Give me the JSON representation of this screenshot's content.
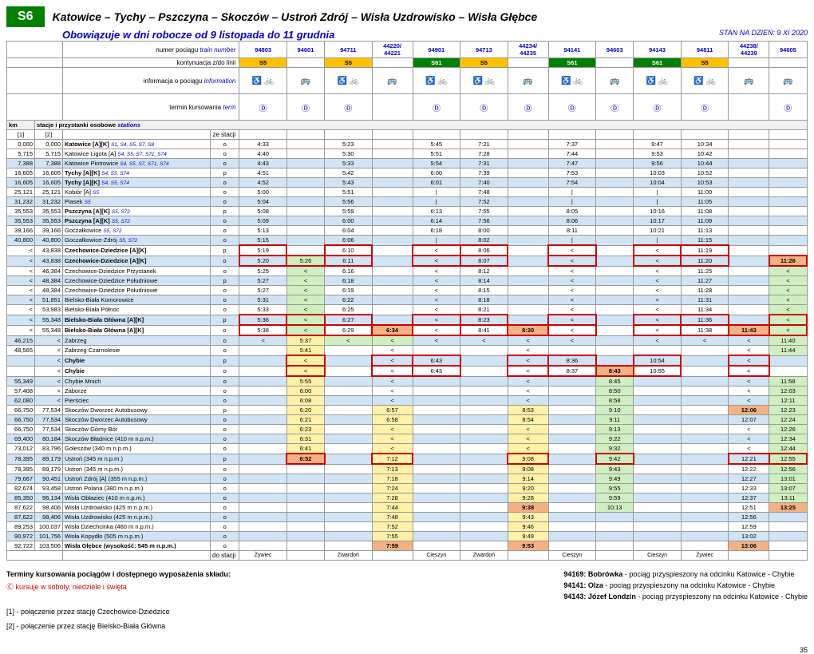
{
  "header": {
    "badge": "S6",
    "title": "Katowice – Tychy – Pszczyna – Skoczów – Ustroń Zdrój – Wisła Uzdrowisko – Wisła Głębce"
  },
  "subtitle": "Obowiązuje w dni robocze od 9 listopada do 11 grudnia",
  "stan": "STAN NA DZIEŃ: 9 XI 2020",
  "labels": {
    "train_no": "numer pociągu",
    "train_no_en": "train number",
    "cont": "kontynuacja z/do linii",
    "info": "informacja o pociągu",
    "info_en": "information",
    "term": "termin kursowania",
    "term_en": "term",
    "stations": "stacje i przystanki osobowe",
    "stations_en": "stations",
    "km": "km",
    "ze": "ze stacji",
    "do": "do stacji",
    "col1": "[1]",
    "col2": "[2]"
  },
  "trains": [
    "94803",
    "94601",
    "94711",
    "44220/\n44221",
    "94901",
    "94713",
    "44234/\n44235",
    "94141",
    "94603",
    "94143",
    "94811",
    "44238/\n44239",
    "94605"
  ],
  "cont_line": [
    "S5",
    "",
    "S5",
    "",
    "S61",
    "S5",
    "",
    "S61",
    "",
    "S61",
    "S5",
    "",
    ""
  ],
  "cont_color": [
    "y",
    "",
    "y",
    "",
    "g",
    "y",
    "",
    "g",
    "",
    "g",
    "y",
    "",
    ""
  ],
  "icons": [
    "♿ 🚲",
    "🚌",
    "♿ 🚲",
    "🚌",
    "♿ 🚲",
    "♿ 🚲",
    "🚌",
    "♿ 🚲",
    "🚌",
    "♿ 🚲",
    "♿ 🚲",
    "🚌",
    "🚌"
  ],
  "terms": [
    "Ⓓ",
    "Ⓓ",
    "Ⓓ",
    "",
    "Ⓓ",
    "Ⓓ",
    "Ⓓ",
    "Ⓓ",
    "Ⓓ",
    "Ⓓ",
    "Ⓓ",
    "",
    "Ⓓ"
  ],
  "endStations": [
    "Żywiec",
    "",
    "Zwardoń",
    "",
    "Cieszyn",
    "Zwardoń",
    "",
    "Cieszyn",
    "",
    "Cieszyn",
    "Żywiec",
    "",
    ""
  ],
  "stations": [
    {
      "k1": "0,000",
      "k2": "0,000",
      "n": "Katowice [A][K]",
      "ex": "S1, S4, S5, S7, S8",
      "o": "o",
      "t": [
        "4:33",
        "",
        "5:23",
        "",
        "5:45",
        "7:21",
        "",
        "7:37",
        "",
        "9:47",
        "10:34",
        "",
        ""
      ],
      "b": 1
    },
    {
      "k1": "5,715",
      "k2": "5,715",
      "n": "Katowice Ligota [A]",
      "ex": "S4, S5, S7, S71, S74",
      "o": "o",
      "t": [
        "4:40",
        "",
        "5:30",
        "",
        "5:51",
        "7:28",
        "",
        "7:44",
        "",
        "9:53",
        "10:42",
        "",
        ""
      ]
    },
    {
      "k1": "7,388",
      "k2": "7,388",
      "n": "Katowice Piotrowice",
      "ex": "S4, S5, S7, S71, S74",
      "o": "o",
      "t": [
        "4:43",
        "",
        "5:33",
        "",
        "5:54",
        "7:31",
        "",
        "7:47",
        "",
        "9:56",
        "10:44",
        "",
        ""
      ],
      "bl": 1
    },
    {
      "k1": "16,605",
      "k2": "16,605",
      "n": "Tychy [A][K]",
      "ex": "S4, S5, S74",
      "o": "p",
      "t": [
        "4:51",
        "",
        "5:42",
        "",
        "6:00",
        "7:39",
        "",
        "7:53",
        "",
        "10:03",
        "10:52",
        "",
        ""
      ],
      "b": 1
    },
    {
      "k1": "16,605",
      "k2": "16,605",
      "n": "Tychy [A][K]",
      "ex": "S4, S5, S74",
      "o": "o",
      "t": [
        "4:52",
        "",
        "5:43",
        "",
        "6:01",
        "7:40",
        "",
        "7:54",
        "",
        "10:04",
        "10:53",
        "",
        ""
      ],
      "b": 1,
      "bl": 1
    },
    {
      "k1": "25,121",
      "k2": "25,121",
      "n": "Kobiór [A]",
      "ex": "S5",
      "o": "o",
      "t": [
        "5:00",
        "",
        "5:51",
        "",
        "|",
        "7:48",
        "",
        "|",
        "",
        "|",
        "11:00",
        "",
        ""
      ]
    },
    {
      "k1": "31,232",
      "k2": "31,232",
      "n": "Piasek",
      "ex": "S5",
      "o": "o",
      "t": [
        "5:04",
        "",
        "5:56",
        "",
        "|",
        "7:52",
        "",
        "|",
        "",
        "|",
        "11:05",
        "",
        ""
      ],
      "bl": 1
    },
    {
      "k1": "35,553",
      "k2": "35,553",
      "n": "Pszczyna [A][K]",
      "ex": "S5, S72",
      "o": "p",
      "t": [
        "5:08",
        "",
        "5:59",
        "",
        "6:13",
        "7:55",
        "",
        "8:05",
        "",
        "10:16",
        "11:08",
        "",
        ""
      ],
      "b": 1
    },
    {
      "k1": "35,553",
      "k2": "35,553",
      "n": "Pszczyna [A][K]",
      "ex": "S5, S72",
      "o": "o",
      "t": [
        "5:09",
        "",
        "6:00",
        "",
        "6:14",
        "7:56",
        "",
        "8:06",
        "",
        "10:17",
        "11:09",
        "",
        ""
      ],
      "b": 1,
      "bl": 1
    },
    {
      "k1": "39,166",
      "k2": "39,166",
      "n": "Goczałkowice",
      "ex": "S5, S72",
      "o": "o",
      "t": [
        "5:13",
        "",
        "6:04",
        "",
        "6:18",
        "8:00",
        "",
        "8:11",
        "",
        "10:21",
        "11:13",
        "",
        ""
      ]
    },
    {
      "k1": "40,800",
      "k2": "40,800",
      "n": "Goczałkowice-Zdrój",
      "ex": "S5, S72",
      "o": "o",
      "t": [
        "5:15",
        "",
        "6:06",
        "",
        "|",
        "8:02",
        "",
        "|",
        "",
        "|",
        "11:15",
        "",
        ""
      ],
      "bl": 1
    },
    {
      "k1": "<",
      "k2": "43,838",
      "n": "Czechowice-Dziedzice [A][K]",
      "o": "p",
      "t": [
        "5:19",
        "",
        "6:10",
        "",
        "<",
        "8:06",
        "",
        "<",
        "",
        "<",
        "11:19",
        "",
        ""
      ],
      "b": 1,
      "red": 1
    },
    {
      "k1": "<",
      "k2": "43,838",
      "n": "Czechowice-Dziedzice [A][K]",
      "o": "o",
      "t": [
        "5:20",
        "5:26",
        "6:11",
        "",
        "<",
        "8:07",
        "",
        "<",
        "",
        "<",
        "11:20",
        "",
        "11:26"
      ],
      "b": 1,
      "bl": 1,
      "hlG": [
        1
      ],
      "hlO": [
        12
      ],
      "red": 1
    },
    {
      "k1": "<",
      "k2": "46,384",
      "n": "Czechowice-Dziedzice Przystanek",
      "o": "o",
      "t": [
        "5:25",
        "<",
        "6:16",
        "",
        "<",
        "8:12",
        "",
        "<",
        "",
        "<",
        "11:25",
        "",
        "<"
      ],
      "hlG": [
        1,
        12
      ]
    },
    {
      "k1": "<",
      "k2": "48,384",
      "n": "Czechowice-Dziedzice Południowe",
      "o": "p",
      "t": [
        "5:27",
        "<",
        "6:18",
        "",
        "<",
        "8:14",
        "",
        "<",
        "",
        "<",
        "11:27",
        "",
        "<"
      ],
      "bl": 1,
      "hlG": [
        1,
        12
      ]
    },
    {
      "k1": "<",
      "k2": "48,384",
      "n": "Czechowice-Dziedzice Południowe",
      "o": "o",
      "t": [
        "5:27",
        "<",
        "6:19",
        "",
        "<",
        "8:15",
        "",
        "<",
        "",
        "<",
        "11:28",
        "",
        "<"
      ],
      "hlG": [
        1,
        12
      ]
    },
    {
      "k1": "<",
      "k2": "51,851",
      "n": "Bielsko-Biała Komorowice",
      "o": "o",
      "t": [
        "5:31",
        "<",
        "6:22",
        "",
        "<",
        "8:18",
        "",
        "<",
        "",
        "<",
        "11:31",
        "",
        "<"
      ],
      "bl": 1,
      "hlG": [
        1,
        12
      ]
    },
    {
      "k1": "<",
      "k2": "53,983",
      "n": "Bielsko-Biała Północ",
      "o": "o",
      "t": [
        "5:33",
        "<",
        "6:25",
        "",
        "<",
        "8:21",
        "",
        "<",
        "",
        "<",
        "11:34",
        "",
        "<"
      ],
      "hlG": [
        1,
        12
      ]
    },
    {
      "k1": "<",
      "k2": "55,348",
      "n": "Bielsko-Biała Główna [A][K]",
      "o": "p",
      "t": [
        "5:36",
        "<",
        "6:27",
        "",
        "<",
        "8:23",
        "",
        "<",
        "",
        "<",
        "11:36",
        "",
        "<"
      ],
      "b": 1,
      "bl": 1,
      "hlG": [
        1,
        12
      ],
      "red": 1
    },
    {
      "k1": "<",
      "k2": "55,348",
      "n": "Bielsko-Biała Główna [A][K]",
      "o": "o",
      "t": [
        "5:38",
        "<",
        "6:29",
        "6:34",
        "<",
        "8:41",
        "8:30",
        "<",
        "",
        "<",
        "11:38",
        "11:43",
        "<"
      ],
      "b": 1,
      "hlG": [
        1,
        12
      ],
      "hlO": [
        3,
        6,
        11
      ],
      "red": 1
    },
    {
      "k1": "46,215",
      "k2": "<",
      "n": "Zabrzeg",
      "o": "o",
      "t": [
        "<",
        "5:37",
        "<",
        "<",
        "<",
        "<",
        "<",
        "<",
        "",
        "<",
        "<",
        "<",
        "11:40"
      ],
      "bl": 1,
      "hlY": [
        1,
        12
      ],
      "hlG": [
        2,
        3,
        12
      ]
    },
    {
      "k1": "48,565",
      "k2": "<",
      "n": "Zabrzeg Czarnolesie",
      "o": "o",
      "t": [
        "",
        "5:41",
        "",
        "<",
        "",
        "",
        "<",
        "",
        "",
        "",
        "",
        "<",
        "11:44"
      ],
      "hlY": [
        1
      ],
      "hlG": [
        12
      ]
    },
    {
      "k1": "",
      "k2": "<",
      "n": "Chybie",
      "o": "p",
      "t": [
        "",
        "<",
        "",
        "<",
        "6:43",
        "",
        "<",
        "8:36",
        "",
        "10:54",
        "",
        "<",
        ""
      ],
      "b": 1,
      "bl": 1,
      "hlY": [
        1
      ],
      "red": 2
    },
    {
      "k1": "",
      "k2": "<",
      "n": "Chybie",
      "o": "o",
      "t": [
        "",
        "<",
        "",
        "<",
        "6:43",
        "",
        "<",
        "8:37",
        "8:43",
        "10:55",
        "",
        "<",
        ""
      ],
      "b": 1,
      "hlY": [
        1
      ],
      "hlO": [
        8
      ],
      "red": 2
    },
    {
      "k1": "55,349",
      "k2": "<",
      "n": "Chybie Mnich",
      "o": "o",
      "t": [
        "",
        "5:55",
        "",
        "<",
        "",
        "",
        "<",
        "",
        "8:45",
        "",
        "",
        "<",
        "11:58"
      ],
      "bl": 1,
      "hlY": [
        1
      ],
      "hlG": [
        8,
        12
      ]
    },
    {
      "k1": "57,408",
      "k2": "<",
      "n": "Zaborze",
      "o": "o",
      "t": [
        "",
        "6:00",
        "",
        "<",
        "",
        "",
        "<",
        "",
        "8:50",
        "",
        "",
        "<",
        "12:03"
      ],
      "hlY": [
        1
      ],
      "hlG": [
        8,
        12
      ]
    },
    {
      "k1": "62,080",
      "k2": "<",
      "n": "Pierściec",
      "o": "o",
      "t": [
        "",
        "6:08",
        "",
        "<",
        "",
        "",
        "<",
        "",
        "8:58",
        "",
        "",
        "<",
        "12:11"
      ],
      "bl": 1,
      "hlY": [
        1
      ],
      "hlG": [
        8,
        12
      ]
    },
    {
      "k1": "66,750",
      "k2": "77,534",
      "n": "Skoczów Dworzec Autobusowy",
      "o": "p",
      "t": [
        "",
        "6:20",
        "",
        "6:57",
        "",
        "",
        "8:53",
        "",
        "9:10",
        "",
        "",
        "12:06",
        "12:23"
      ],
      "hlY": [
        1,
        3,
        6
      ],
      "hlG": [
        8,
        12
      ],
      "hlO": [
        11
      ]
    },
    {
      "k1": "66,750",
      "k2": "77,534",
      "n": "Skoczów Dworzec Autobusowy",
      "o": "o",
      "t": [
        "",
        "6:21",
        "",
        "6:58",
        "",
        "",
        "8:54",
        "",
        "9:11",
        "",
        "",
        "12:07",
        "12:24"
      ],
      "bl": 1,
      "hlY": [
        1,
        3,
        6
      ],
      "hlG": [
        8,
        12
      ]
    },
    {
      "k1": "66,750",
      "k2": "77,534",
      "n": "Skoczów Górny Bór",
      "o": "o",
      "t": [
        "",
        "6:23",
        "",
        "<",
        "",
        "",
        "<",
        "",
        "9:13",
        "",
        "",
        "<",
        "12:26"
      ],
      "hlY": [
        1,
        3,
        6
      ],
      "hlG": [
        8,
        12
      ]
    },
    {
      "k1": "69,400",
      "k2": "80,184",
      "n": "Skoczów Bładnice (410 m n.p.m.)",
      "o": "o",
      "t": [
        "",
        "6:31",
        "",
        "<",
        "",
        "",
        "<",
        "",
        "9:22",
        "",
        "",
        "<",
        "12:34"
      ],
      "bl": 1,
      "hlY": [
        1,
        3,
        6
      ],
      "hlG": [
        8,
        12
      ]
    },
    {
      "k1": "73,012",
      "k2": "83,796",
      "n": "Goleszów (340 m n.p.m.)",
      "o": "o",
      "t": [
        "",
        "6:41",
        "",
        "<",
        "",
        "",
        "<",
        "",
        "9:32",
        "",
        "",
        "<",
        "12:44"
      ],
      "hlY": [
        1,
        3,
        6
      ],
      "hlG": [
        8,
        12
      ]
    },
    {
      "k1": "78,395",
      "k2": "89,179",
      "n": "Ustroń (345 m n.p.m.)",
      "o": "p",
      "t": [
        "",
        "6:52",
        "",
        "7:12",
        "",
        "",
        "9:08",
        "",
        "9:42",
        "",
        "",
        "12:21",
        "12:55"
      ],
      "bl": 1,
      "hlY": [
        3,
        6
      ],
      "hlG": [
        8,
        12
      ],
      "hlO": [
        1
      ],
      "red": 1
    },
    {
      "k1": "78,395",
      "k2": "89,179",
      "n": "Ustroń (345 m n.p.m.)",
      "o": "o",
      "t": [
        "",
        "",
        "",
        "7:13",
        "",
        "",
        "9:08",
        "",
        "9:43",
        "",
        "",
        "12:22",
        "12:56"
      ],
      "hlY": [
        3,
        6
      ],
      "hlG": [
        8,
        12
      ]
    },
    {
      "k1": "79,667",
      "k2": "90,451",
      "n": "Ustroń Zdrój [A] (355 m n.p.m.)",
      "o": "o",
      "t": [
        "",
        "",
        "",
        "7:18",
        "",
        "",
        "9:14",
        "",
        "9:49",
        "",
        "",
        "12:27",
        "13:01"
      ],
      "bl": 1,
      "hlY": [
        3,
        6
      ],
      "hlG": [
        8,
        12
      ]
    },
    {
      "k1": "82,674",
      "k2": "93,458",
      "n": "Ustroń Polana (380 m n.p.m.)",
      "o": "o",
      "t": [
        "",
        "",
        "",
        "7:24",
        "",
        "",
        "9:20",
        "",
        "9:55",
        "",
        "",
        "12:33",
        "13:07"
      ],
      "hlY": [
        3,
        6
      ],
      "hlG": [
        8,
        12
      ]
    },
    {
      "k1": "85,350",
      "k2": "96,134",
      "n": "Wisła Obłaziec (410 m n.p.m.)",
      "o": "o",
      "t": [
        "",
        "",
        "",
        "7:28",
        "",
        "",
        "9:28",
        "",
        "9:59",
        "",
        "",
        "12:37",
        "13:11"
      ],
      "bl": 1,
      "hlY": [
        3,
        6
      ],
      "hlG": [
        8,
        12
      ]
    },
    {
      "k1": "87,622",
      "k2": "98,406",
      "n": "Wisła Uzdrowisko (425 m n.p.m.)",
      "o": "o",
      "t": [
        "",
        "",
        "",
        "7:44",
        "",
        "",
        "9:38",
        "",
        "10:13",
        "",
        "",
        "12:51",
        "13:25"
      ],
      "hlY": [
        3
      ],
      "hlG": [
        8
      ],
      "hlO": [
        6,
        12
      ]
    },
    {
      "k1": "87,622",
      "k2": "98,406",
      "n": "Wisła Uzdrowisko (425 m n.p.m.)",
      "o": "o",
      "t": [
        "",
        "",
        "",
        "7:48",
        "",
        "",
        "9:43",
        "",
        "",
        "",
        "",
        "12:56",
        ""
      ],
      "bl": 1,
      "hlY": [
        3,
        6
      ]
    },
    {
      "k1": "89,253",
      "k2": "100,037",
      "n": "Wisła Dziechcinka (460 m n.p.m.)",
      "o": "o",
      "t": [
        "",
        "",
        "",
        "7:52",
        "",
        "",
        "9:46",
        "",
        "",
        "",
        "",
        "12:59",
        ""
      ],
      "hlY": [
        3,
        6
      ]
    },
    {
      "k1": "90,972",
      "k2": "101,756",
      "n": "Wisła Kopydło (505 m n.p.m.)",
      "o": "o",
      "t": [
        "",
        "",
        "",
        "7:55",
        "",
        "",
        "9:49",
        "",
        "",
        "",
        "",
        "13:02",
        ""
      ],
      "bl": 1,
      "hlY": [
        3,
        6
      ]
    },
    {
      "k1": "92,722",
      "k2": "103,506",
      "n": "Wisła Głębce (wysokość: 545 m n.p.m.)",
      "o": "o",
      "t": [
        "",
        "",
        "",
        "7:59",
        "",
        "",
        "9:53",
        "",
        "",
        "",
        "",
        "13:06",
        ""
      ],
      "b": 1,
      "hlO": [
        3,
        6,
        11
      ]
    }
  ],
  "footer": {
    "terms_title": "Terminy kursowania pociągów i dostępnego wyposażenia składu:",
    "c_sym": "Ⓒ",
    "c_text": "kursuje w soboty, niedziele i święta",
    "n1": "[1] - połączenie przez stację Czechowice-Dziedzice",
    "n2": "[2] - połączenie przez stację Bielsko-Biała Główna",
    "r1a": "94169: Bobrówka",
    "r1b": " - pociąg przyspieszony na odcinku Katowice - Chybie",
    "r2a": "94141: Olza",
    "r2b": " - pociąg przyspieszony na odcinku Katowice - Chybie",
    "r3a": "94143: Józef Londzin",
    "r3b": " - pociąg przyspieszony na odcinku Katowice - Chybie",
    "page": "35"
  }
}
